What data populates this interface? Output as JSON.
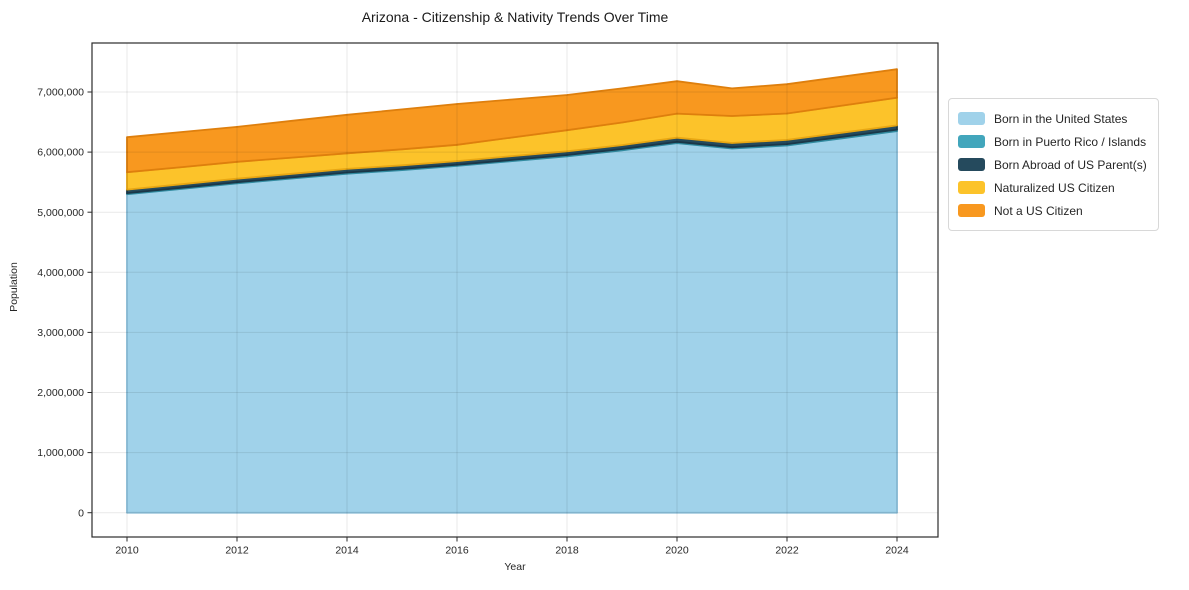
{
  "title": "Arizona - Citizenship & Nativity Trends Over Time",
  "x_axis": {
    "label": "Year",
    "tick_labels": [
      "2010",
      "2012",
      "2014",
      "2016",
      "2018",
      "2020",
      "2022",
      "2024"
    ],
    "tick_values": [
      2010,
      2012,
      2014,
      2016,
      2018,
      2020,
      2022,
      2024
    ]
  },
  "y_axis": {
    "label": "Population",
    "tick_labels": [
      "0",
      "1,000,000",
      "2,000,000",
      "3,000,000",
      "4,000,000",
      "5,000,000",
      "6,000,000",
      "7,000,000"
    ],
    "tick_values": [
      0,
      1000000,
      2000000,
      3000000,
      4000000,
      5000000,
      6000000,
      7000000
    ]
  },
  "chart_data": {
    "type": "area",
    "stacked": true,
    "title": "Arizona - Citizenship & Nativity Trends Over Time",
    "xlabel": "Year",
    "ylabel": "Population",
    "x": [
      2010,
      2011,
      2012,
      2013,
      2014,
      2015,
      2016,
      2017,
      2018,
      2019,
      2020,
      2021,
      2022,
      2023,
      2024
    ],
    "xlim": [
      2009.35,
      2024.75
    ],
    "ylim": [
      0,
      7830000
    ],
    "grid": true,
    "legend_position": "right",
    "series": [
      {
        "name": "Born in the United States",
        "color": "#a0d2ea",
        "edge_color": "#8cc1dc",
        "values": [
          5300000,
          5390000,
          5480000,
          5560000,
          5640000,
          5700000,
          5770000,
          5850000,
          5930000,
          6030000,
          6150000,
          6060000,
          6110000,
          6230000,
          6350000
        ]
      },
      {
        "name": "Born in Puerto Rico / Islands",
        "color": "#42a6bc",
        "edge_color": "#318ba0",
        "values": [
          18000,
          18000,
          19000,
          19000,
          20000,
          20000,
          20000,
          21000,
          21000,
          22000,
          22000,
          22000,
          23000,
          23000,
          24000
        ]
      },
      {
        "name": "Born Abroad of US Parent(s)",
        "color": "#254a5d",
        "edge_color": "#1a3748",
        "values": [
          58000,
          58000,
          59000,
          60000,
          60000,
          61000,
          61000,
          62000,
          63000,
          65000,
          68000,
          69000,
          70000,
          70000,
          71000
        ]
      },
      {
        "name": "Naturalized US Citizen",
        "color": "#fcc32a",
        "edge_color": "#e8a713",
        "values": [
          290000,
          285000,
          280000,
          270000,
          260000,
          265000,
          270000,
          310000,
          350000,
          375000,
          400000,
          450000,
          440000,
          450000,
          460000
        ]
      },
      {
        "name": "Not a US Citizen",
        "color": "#f8981f",
        "edge_color": "#de7f0d",
        "values": [
          582000,
          584000,
          582000,
          611000,
          640000,
          664000,
          679000,
          632000,
          586000,
          568000,
          540000,
          459000,
          487000,
          482000,
          475000
        ]
      }
    ]
  }
}
